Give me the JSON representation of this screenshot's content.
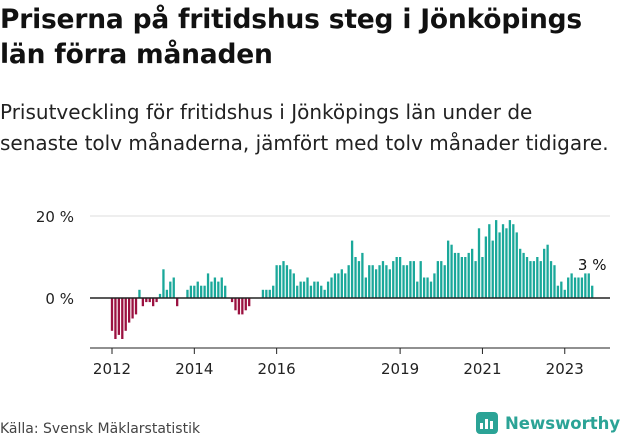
{
  "header": {
    "title": "Priserna på fritidshus steg i Jönköpings län förra månaden",
    "subtitle": "Prisutveckling för fritidshus i Jönköpings län under de senaste tolv månaderna, jämfört med tolv månader tidigare."
  },
  "footer": {
    "source": "Källa: Svensk Mäklarstatistik",
    "brand": "Newsworthy",
    "brand_icon": "newsworthy-logo-icon"
  },
  "colors": {
    "positive": "#1aa89a",
    "negative": "#9b1140",
    "axis": "#222222",
    "grid": "#dddddd",
    "brand": "#2ba396"
  },
  "chart_data": {
    "type": "bar",
    "ylabel": "",
    "xlabel": "",
    "y_ticks": [
      0,
      20
    ],
    "y_tick_labels": [
      "0 %",
      "20 %"
    ],
    "ylim": [
      -12,
      21
    ],
    "grid": true,
    "x_ticks": [
      "2012",
      "2014",
      "2016",
      "2019",
      "2021",
      "2023"
    ],
    "annotation": "3 %",
    "start": "2012-01",
    "values": [
      -8,
      -10,
      -9,
      -10,
      -8,
      -6,
      -5,
      -4,
      2,
      -2,
      -1,
      -1,
      -2,
      -1,
      1,
      7,
      2,
      4,
      5,
      -2,
      0,
      0,
      2,
      3,
      3,
      4,
      3,
      3,
      6,
      4,
      5,
      4,
      5,
      3,
      0,
      -1,
      -3,
      -4,
      -4,
      -3,
      -2,
      0,
      0,
      0,
      2,
      2,
      2,
      3,
      8,
      8,
      9,
      8,
      7,
      6,
      3,
      4,
      4,
      5,
      3,
      4,
      4,
      3,
      2,
      4,
      5,
      6,
      6,
      7,
      6,
      8,
      14,
      10,
      9,
      11,
      5,
      8,
      8,
      7,
      8,
      9,
      8,
      7,
      9,
      10,
      10,
      8,
      8,
      9,
      9,
      4,
      9,
      5,
      5,
      4,
      6,
      9,
      9,
      8,
      14,
      13,
      11,
      11,
      10,
      10,
      11,
      12,
      9,
      17,
      10,
      15,
      18,
      14,
      19,
      16,
      18,
      17,
      19,
      18,
      16,
      12,
      11,
      10,
      9,
      9,
      10,
      9,
      12,
      13,
      9,
      8,
      3,
      4,
      2,
      5,
      6,
      5,
      5,
      5,
      6,
      6,
      3
    ]
  }
}
